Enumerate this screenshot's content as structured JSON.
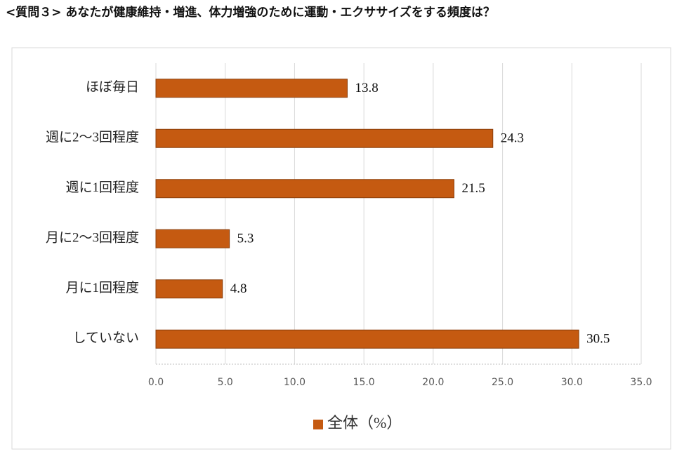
{
  "chart_data": {
    "type": "bar",
    "orientation": "horizontal",
    "title": "<質問３> あなたが健康維持・増進、体力増強のために運動・エクササイズをする頻度は？",
    "categories": [
      "ほぼ毎日",
      "週に2～3回程度",
      "週に1回程度",
      "月に2～3回程度",
      "月に1回程度",
      "していない"
    ],
    "series": [
      {
        "name": "全体（%）",
        "color": "#c55a11",
        "values": [
          13.8,
          24.3,
          21.5,
          5.3,
          4.8,
          30.5
        ]
      }
    ],
    "xlim": [
      0,
      35
    ],
    "xticks": [
      {
        "value": 0,
        "label": "0.0"
      },
      {
        "value": 5,
        "label": "5.0"
      },
      {
        "value": 10,
        "label": "10.0"
      },
      {
        "value": 15,
        "label": "15.0"
      },
      {
        "value": 20,
        "label": "20.0"
      },
      {
        "value": 25,
        "label": "25.0"
      },
      {
        "value": 30,
        "label": "30.0"
      },
      {
        "value": 35,
        "label": "35.0"
      }
    ],
    "grid": true,
    "legend": "bottom"
  }
}
